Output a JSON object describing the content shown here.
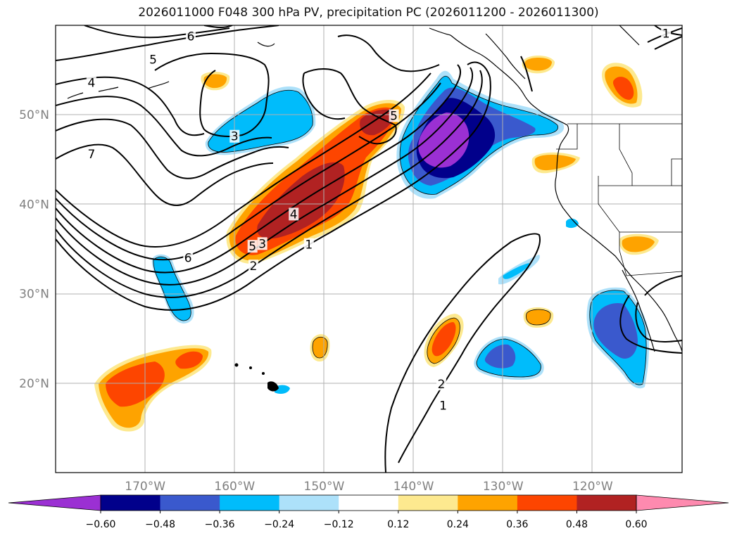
{
  "title": "2026011000 F048 300 hPa PV, precipitation PC (2026011200 - 2026011300)",
  "map": {
    "lon_range": [
      -180,
      -110
    ],
    "lat_range": [
      10,
      60
    ],
    "lon_ticks": [
      {
        "value": -170,
        "label": "170°W"
      },
      {
        "value": -160,
        "label": "160°W"
      },
      {
        "value": -150,
        "label": "150°W"
      },
      {
        "value": -140,
        "label": "140°W"
      },
      {
        "value": -130,
        "label": "130°W"
      },
      {
        "value": -120,
        "label": "120°W"
      }
    ],
    "lat_ticks": [
      {
        "value": 20,
        "label": "20°N"
      },
      {
        "value": 30,
        "label": "30°N"
      },
      {
        "value": 40,
        "label": "40°N"
      },
      {
        "value": 50,
        "label": "50°N"
      }
    ],
    "contour_labels": [
      {
        "text": "6",
        "lon": -164.9,
        "lat": 58.8
      },
      {
        "text": "5",
        "lon": -169.1,
        "lat": 56.2
      },
      {
        "text": "4",
        "lon": -176.0,
        "lat": 53.6
      },
      {
        "text": "3",
        "lon": -160.0,
        "lat": 47.6
      },
      {
        "text": "7",
        "lon": -176.0,
        "lat": 45.6
      },
      {
        "text": "6",
        "lon": -165.2,
        "lat": 34.0
      },
      {
        "text": "5",
        "lon": -158.0,
        "lat": 35.3
      },
      {
        "text": "3",
        "lon": -156.9,
        "lat": 35.6
      },
      {
        "text": "4",
        "lon": -153.4,
        "lat": 38.9
      },
      {
        "text": "2",
        "lon": -157.9,
        "lat": 33.1
      },
      {
        "text": "1",
        "lon": -151.7,
        "lat": 35.5
      },
      {
        "text": "5",
        "lon": -142.2,
        "lat": 49.9
      },
      {
        "text": "2",
        "lon": -136.9,
        "lat": 19.9
      },
      {
        "text": "1",
        "lon": -136.7,
        "lat": 17.5
      },
      {
        "text": "1",
        "lon": -111.8,
        "lat": 59.1
      }
    ]
  },
  "colorbar": {
    "tick_labels": [
      "−0.60",
      "−0.48",
      "−0.36",
      "−0.24",
      "−0.12",
      "0.12",
      "0.24",
      "0.36",
      "0.48",
      "0.60"
    ],
    "colors": [
      "#9b30d3",
      "#01008b",
      "#3a59cd",
      "#00bcfb",
      "#ade1fa",
      "#ffffff",
      "#fde98f",
      "#fea300",
      "#fd4500",
      "#b12222",
      "#fe8aaf"
    ],
    "extend": "both"
  }
}
